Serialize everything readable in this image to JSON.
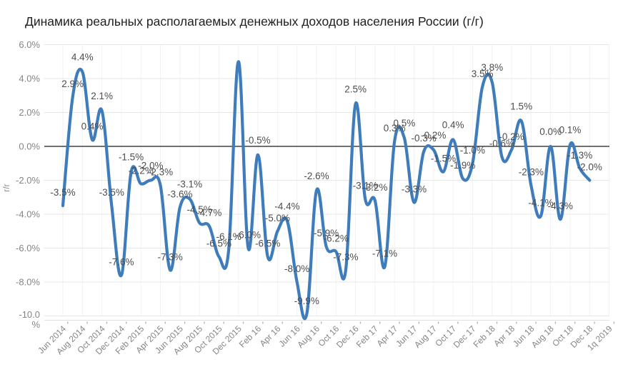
{
  "title": "Динамика реальных располагаемых денежных доходов населения России (г/г)",
  "y_axis_title": "г/г",
  "chart_data": {
    "type": "line",
    "title": "Динамика реальных располагаемых денежных доходов населения России (г/г)",
    "ylabel": "г/г",
    "xlabel": "",
    "legend_position": "none",
    "grid": true,
    "line_color": "#3e7cbc",
    "data_label_color": "#4d4d4d",
    "axis_label_color": "#858585",
    "zero_line_color": "#1a1a1a",
    "ylim": [
      -10,
      6
    ],
    "label_format": "0.0%",
    "x": [
      "Jun 2014",
      "Jul 2014",
      "Aug 2014",
      "Sep 2014",
      "Oct 2014",
      "Nov 2014",
      "Dec 2014",
      "Jan 2015",
      "Feb 2015",
      "Mar 2015",
      "Apr 2015",
      "May 2015",
      "Jun 2015",
      "Jul 2015",
      "Aug 2015",
      "Sep 2015",
      "Oct 2015",
      "Nov 2015",
      "Dec 2015",
      "Jan 16",
      "Feb 16",
      "Mar 16",
      "Apr 16",
      "May 16",
      "Jun 16",
      "Jul 16",
      "Aug 16",
      "Sep 16",
      "Oct 16",
      "Nov 16",
      "Dec 16",
      "Jan 17",
      "Feb 17",
      "Mar 17",
      "Apr 17",
      "May 17",
      "Jun 17",
      "Jul 17",
      "Aug 17",
      "Sep 17",
      "Oct 17",
      "Nov 17",
      "Dec 17",
      "Jan 18",
      "Feb 18",
      "Mar 18",
      "Apr 18",
      "May 18",
      "Jun 18",
      "Jul 18",
      "Aug 18",
      "Sep 18",
      "Oct 18",
      "Nov 18",
      "Dec 18"
    ],
    "values": [
      -3.5,
      2.9,
      4.4,
      0.4,
      2.1,
      -3.5,
      -7.6,
      -1.5,
      -2.2,
      -2.0,
      -2.3,
      -7.3,
      -3.6,
      -3.1,
      -4.5,
      -4.7,
      -6.5,
      -6.1,
      5.0,
      -6.0,
      -0.5,
      -6.5,
      -5.0,
      -4.4,
      -8.0,
      -9.9,
      -2.6,
      -5.9,
      -6.2,
      -7.3,
      2.5,
      -3.1,
      -3.2,
      -7.1,
      0.3,
      0.5,
      -3.3,
      -0.3,
      -0.2,
      -1.5,
      0.4,
      -1.9,
      -1.0,
      3.5,
      3.8,
      -0.6,
      -0.2,
      1.5,
      -2.3,
      -4.1,
      0.0,
      -4.3,
      0.1,
      -1.3,
      -2.0
    ],
    "hidden_label_indices": [
      18
    ],
    "extra_axis_category": "1q 2019",
    "tick_labels": [
      "Jun 2014",
      "Aug 2014",
      "Oct 2014",
      "Dec 2014",
      "Feb 2015",
      "Apr 2015",
      "Jun 2015",
      "Aug 2015",
      "Oct 2015",
      "Dec 2015",
      "Feb 16",
      "Apr 16",
      "Jun 16",
      "Aug 16",
      "Oct 16",
      "Dec 16",
      "Feb 17",
      "Apr 17",
      "Jun 17",
      "Aug 17",
      "Oct 17",
      "Dec 17",
      "Feb 18",
      "Apr 18",
      "Jun 18",
      "Aug 18",
      "Oct 18",
      "Dec 18",
      "1q 2019"
    ],
    "y_ticks": [
      {
        "v": 6,
        "label": "6.0%"
      },
      {
        "v": 4,
        "label": "4.0%"
      },
      {
        "v": 2,
        "label": "2.0%"
      },
      {
        "v": 0,
        "label": "0.0%"
      },
      {
        "v": -2,
        "label": "-2.0%"
      },
      {
        "v": -4,
        "label": "-4.0%"
      },
      {
        "v": -6,
        "label": "-6.0%"
      },
      {
        "v": -8,
        "label": "-8.0%"
      },
      {
        "v": -10,
        "label": "-10.0",
        "label2": "%"
      }
    ]
  }
}
